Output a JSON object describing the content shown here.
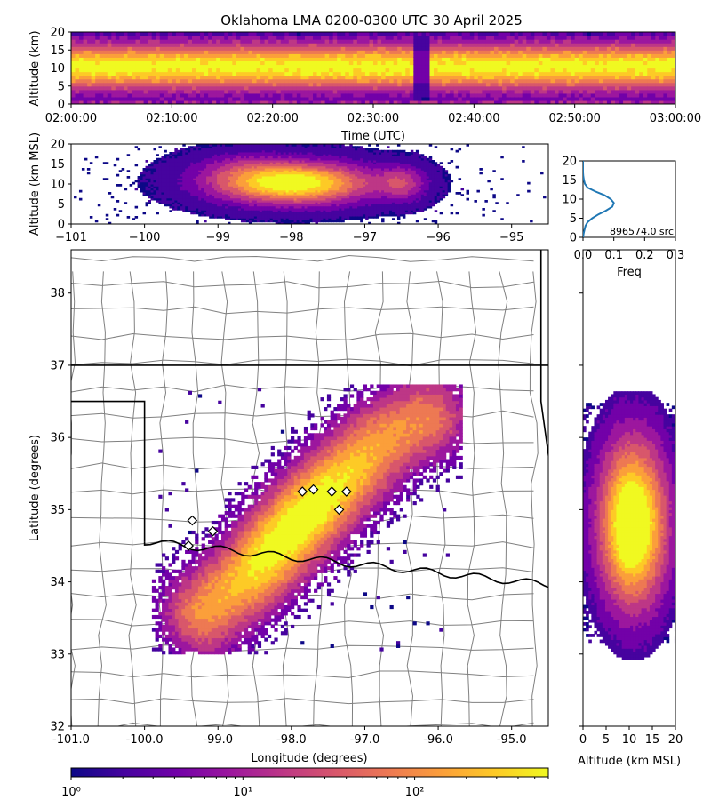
{
  "title": "Oklahoma LMA 0200-0300 UTC 30 April 2025",
  "colors": {
    "plasma": [
      "#0d0887",
      "#46039f",
      "#7201a8",
      "#9c179e",
      "#bd3786",
      "#d8576b",
      "#ed7953",
      "#fb9f3a",
      "#fdca26",
      "#f0f921"
    ],
    "state_border": "#000000",
    "county_border": "#808080",
    "freq_line": "#1f77b4"
  },
  "chart_data": [
    {
      "id": "time-height",
      "type": "heatmap",
      "xlabel": "Time (UTC)",
      "ylabel": "Altitude (km)",
      "xticks": [
        "02:00:00",
        "02:10:00",
        "02:20:00",
        "02:30:00",
        "02:40:00",
        "02:50:00",
        "03:00:00"
      ],
      "xlim": [
        "02:00:00",
        "03:00:00"
      ],
      "ylim": [
        0,
        20
      ],
      "yticks": [
        0,
        5,
        10,
        15,
        20
      ],
      "gap_time": "02:34:30",
      "core_altitude_km": [
        7,
        13
      ]
    },
    {
      "id": "lon-height",
      "type": "heatmap",
      "ylabel": "Altitude (km MSL)",
      "xlim": [
        -101,
        -94.5
      ],
      "xticks": [
        -101,
        -100,
        -99,
        -98,
        -97,
        -96,
        -95
      ],
      "ylim": [
        0,
        20
      ],
      "yticks": [
        0,
        5,
        10,
        15,
        20
      ],
      "peak_lon_range": [
        -98.8,
        -97.2
      ],
      "peak_altitude_km": 10
    },
    {
      "id": "altitude-histogram",
      "type": "line",
      "xlabel": "Freq",
      "xlim": [
        0,
        0.3
      ],
      "xticks": [
        "0.0",
        "0.1",
        "0.2",
        "0.3"
      ],
      "ylim": [
        0,
        20
      ],
      "yticks": [
        0,
        5,
        10,
        15,
        20
      ],
      "annotation": "896574.0 src",
      "series": [
        {
          "altitude_km": [
            0,
            1,
            2,
            3,
            4,
            5,
            6,
            7,
            8,
            9,
            10,
            11,
            12,
            13,
            14,
            15,
            16,
            17,
            18,
            19,
            20
          ],
          "freq": [
            0.0,
            0.002,
            0.005,
            0.008,
            0.015,
            0.03,
            0.05,
            0.075,
            0.095,
            0.1,
            0.09,
            0.07,
            0.04,
            0.015,
            0.006,
            0.003,
            0.001,
            0.0,
            0.0,
            0.0,
            0.0
          ]
        }
      ]
    },
    {
      "id": "plan-view",
      "type": "heatmap",
      "xlabel": "Longitude (degrees)",
      "ylabel": "Latitude (degrees)",
      "xlim": [
        -101.0,
        -94.5
      ],
      "ylim": [
        32,
        38.6
      ],
      "xticks": [
        "-101.0",
        "-100.0",
        "-99.0",
        "-98.0",
        "-97.0",
        "-96.0",
        "-95.0"
      ],
      "yticks": [
        32,
        33,
        34,
        35,
        36,
        37,
        38
      ],
      "stations": [
        [
          -97.85,
          35.25
        ],
        [
          -97.7,
          35.28
        ],
        [
          -97.45,
          35.25
        ],
        [
          -97.25,
          35.25
        ],
        [
          -97.35,
          35.0
        ],
        [
          -99.35,
          34.85
        ],
        [
          -99.07,
          34.7
        ],
        [
          -99.4,
          34.5
        ]
      ]
    },
    {
      "id": "lat-height",
      "type": "heatmap",
      "xlabel": "Altitude (km MSL)",
      "xlim": [
        0,
        20
      ],
      "xticks": [
        0,
        5,
        10,
        15,
        20
      ],
      "ylim": [
        32,
        38.6
      ]
    },
    {
      "id": "colorbar",
      "type": "colorbar",
      "scale": "log",
      "ticks": [
        "10⁰",
        "10¹",
        "10²"
      ],
      "range": [
        1,
        600
      ]
    }
  ]
}
